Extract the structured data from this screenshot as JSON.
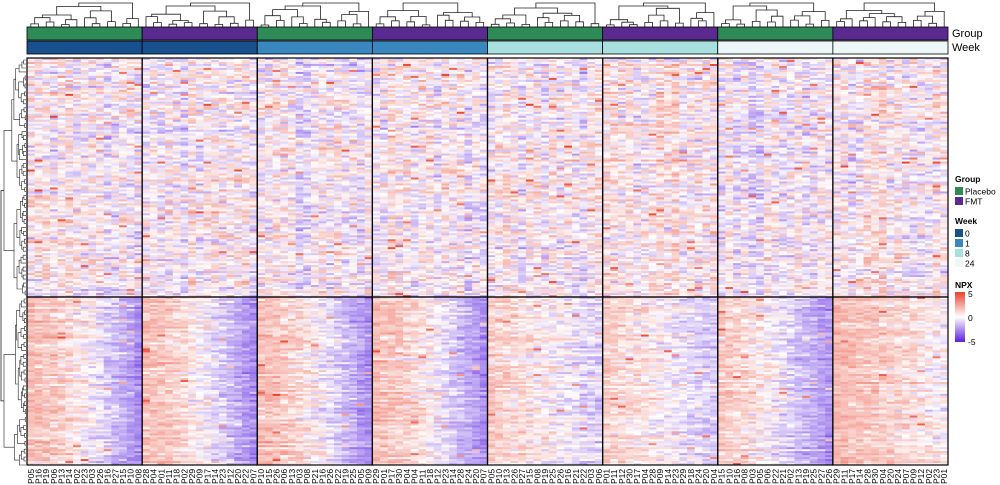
{
  "chart_data": {
    "type": "heatmap",
    "annotation_tracks": [
      {
        "name": "Group"
      },
      {
        "name": "Week"
      }
    ],
    "column_blocks": [
      {
        "group": "Placebo",
        "week": "0",
        "samples": [
          "P05",
          "P16",
          "P19",
          "P06",
          "P13",
          "P14",
          "P02",
          "P23",
          "P03",
          "P26",
          "P16",
          "P27",
          "P15",
          "P10",
          "P08"
        ]
      },
      {
        "group": "FMT",
        "week": "0",
        "samples": [
          "P28",
          "P04",
          "P01",
          "P11",
          "P18",
          "P02",
          "P29",
          "P09",
          "P17",
          "P14",
          "P23",
          "P12",
          "P20",
          "P22",
          "P07"
        ]
      },
      {
        "group": "Placebo",
        "week": "1",
        "samples": [
          "P10",
          "P15",
          "P26",
          "P06",
          "P13",
          "P03",
          "P08",
          "P21",
          "P16",
          "P26",
          "P22",
          "P19",
          "P25",
          "P05",
          "P09"
        ]
      },
      {
        "group": "FMT",
        "week": "1",
        "samples": [
          "P29",
          "P01",
          "P17",
          "P30",
          "P04",
          "P04",
          "P11",
          "P18",
          "P12",
          "P23",
          "P14",
          "P28",
          "P24",
          "P20",
          "P07"
        ]
      },
      {
        "group": "Placebo",
        "week": "8",
        "samples": [
          "P05",
          "P10",
          "P13",
          "P26",
          "P27",
          "P15",
          "P08",
          "P19",
          "P25",
          "P26",
          "P16",
          "P21",
          "P22",
          "P03",
          "P06"
        ]
      },
      {
        "group": "FMT",
        "week": "8",
        "samples": [
          "P01",
          "P11",
          "P12",
          "P30",
          "P17",
          "P04",
          "P28",
          "P09",
          "P14",
          "P23",
          "P29",
          "P18",
          "P24",
          "P20",
          "P04"
        ]
      },
      {
        "group": "Placebo",
        "week": "24",
        "samples": [
          "P15",
          "P10",
          "P16",
          "P08",
          "P03",
          "P05",
          "P06",
          "P22",
          "P21",
          "P02",
          "P13",
          "P19",
          "P25",
          "P27",
          "P26"
        ]
      },
      {
        "group": "FMT",
        "week": "24",
        "samples": [
          "P29",
          "P11",
          "P17",
          "P14",
          "P28",
          "P30",
          "P04",
          "P20",
          "P24",
          "P07",
          "P09",
          "P12",
          "P02",
          "P23",
          "P01"
        ]
      }
    ],
    "row_clusters": [
      {
        "n_rows": 120,
        "pattern": "mixed"
      },
      {
        "n_rows": 85,
        "pattern": "positive-left-negative-right"
      }
    ],
    "color_scale": {
      "name": "NPX",
      "min": -5,
      "mid": 0,
      "max": 5,
      "low_color": "#5a1fe0",
      "mid_color": "#ffffff",
      "high_color": "#e8412b"
    },
    "legends": {
      "group": {
        "title": "Group",
        "entries": [
          {
            "label": "Placebo",
            "color": "#2e8b57"
          },
          {
            "label": "FMT",
            "color": "#5b2a91"
          }
        ]
      },
      "week": {
        "title": "Week",
        "entries": [
          {
            "label": "0",
            "color": "#17508c"
          },
          {
            "label": "1",
            "color": "#3a86be"
          },
          {
            "label": "8",
            "color": "#a8dfdf"
          },
          {
            "label": "24",
            "color": "#eef7f7"
          }
        ]
      },
      "npx": {
        "title": "NPX",
        "ticks": [
          "5",
          "0",
          "-5"
        ]
      }
    }
  }
}
